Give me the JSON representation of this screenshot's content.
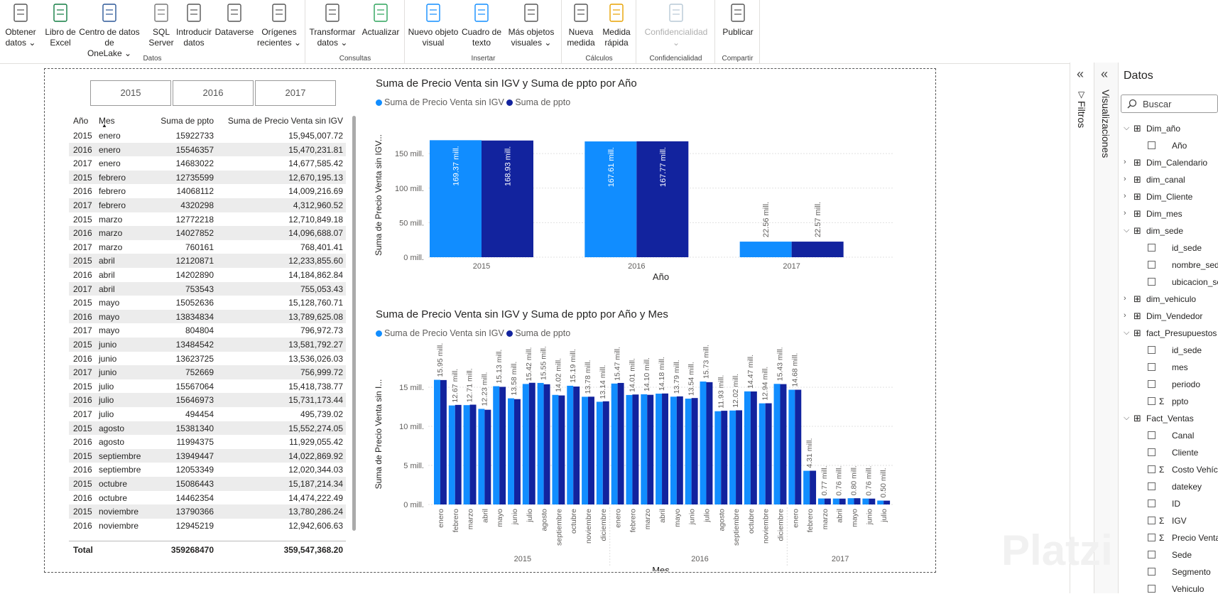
{
  "ribbon": {
    "groups": [
      {
        "name": "Datos",
        "buttons": [
          {
            "label1": "Obtener",
            "label2": "datos ⌄",
            "icon": "database-icon"
          },
          {
            "label1": "Libro de",
            "label2": "Excel",
            "icon": "excel-icon"
          },
          {
            "label1": "Centro de datos de",
            "label2": "OneLake ⌄",
            "icon": "onelake-icon"
          },
          {
            "label1": "SQL",
            "label2": "Server",
            "icon": "sql-server-icon"
          },
          {
            "label1": "Introducir",
            "label2": "datos",
            "icon": "table-grid-icon"
          },
          {
            "label1": "Dataverse",
            "label2": "",
            "icon": "dataverse-icon"
          },
          {
            "label1": "Orígenes",
            "label2": "recientes ⌄",
            "icon": "recent-sources-icon"
          }
        ]
      },
      {
        "name": "Consultas",
        "buttons": [
          {
            "label1": "Transformar",
            "label2": "datos ⌄",
            "icon": "transform-icon"
          },
          {
            "label1": "Actualizar",
            "label2": "",
            "icon": "refresh-icon"
          }
        ]
      },
      {
        "name": "Insertar",
        "buttons": [
          {
            "label1": "Nuevo objeto",
            "label2": "visual",
            "icon": "new-visual-icon"
          },
          {
            "label1": "Cuadro de",
            "label2": "texto",
            "icon": "text-box-icon"
          },
          {
            "label1": "Más objetos",
            "label2": "visuales ⌄",
            "icon": "more-visuals-icon"
          }
        ]
      },
      {
        "name": "Cálculos",
        "buttons": [
          {
            "label1": "Nueva",
            "label2": "medida",
            "icon": "calculator-icon"
          },
          {
            "label1": "Medida",
            "label2": "rápida",
            "icon": "quick-measure-icon"
          }
        ]
      },
      {
        "name": "Confidencialidad",
        "buttons": [
          {
            "label1": "Confidencialidad",
            "label2": "⌄",
            "icon": "sensitivity-icon"
          }
        ]
      },
      {
        "name": "Compartir",
        "buttons": [
          {
            "label1": "Publicar",
            "label2": "",
            "icon": "publish-icon"
          }
        ]
      }
    ]
  },
  "slicer": {
    "years": [
      "2015",
      "2016",
      "2017"
    ]
  },
  "table": {
    "headers": [
      "Año",
      "Mes",
      "Suma de ppto",
      "Suma de Precio Venta sin IGV"
    ],
    "rows": [
      [
        "2015",
        "enero",
        "15922733",
        "15,945,007.72"
      ],
      [
        "2016",
        "enero",
        "15546357",
        "15,470,231.81"
      ],
      [
        "2017",
        "enero",
        "14683022",
        "14,677,585.42"
      ],
      [
        "2015",
        "febrero",
        "12735599",
        "12,670,195.13"
      ],
      [
        "2016",
        "febrero",
        "14068112",
        "14,009,216.69"
      ],
      [
        "2017",
        "febrero",
        "4320298",
        "4,312,960.52"
      ],
      [
        "2015",
        "marzo",
        "12772218",
        "12,710,849.18"
      ],
      [
        "2016",
        "marzo",
        "14027852",
        "14,096,688.07"
      ],
      [
        "2017",
        "marzo",
        "760161",
        "768,401.41"
      ],
      [
        "2015",
        "abril",
        "12120871",
        "12,233,855.60"
      ],
      [
        "2016",
        "abril",
        "14202890",
        "14,184,862.84"
      ],
      [
        "2017",
        "abril",
        "753543",
        "755,053.43"
      ],
      [
        "2015",
        "mayo",
        "15052636",
        "15,128,760.71"
      ],
      [
        "2016",
        "mayo",
        "13834834",
        "13,789,625.08"
      ],
      [
        "2017",
        "mayo",
        "804804",
        "796,972.73"
      ],
      [
        "2015",
        "junio",
        "13484542",
        "13,581,792.27"
      ],
      [
        "2016",
        "junio",
        "13623725",
        "13,536,026.03"
      ],
      [
        "2017",
        "junio",
        "752669",
        "756,999.72"
      ],
      [
        "2015",
        "julio",
        "15567064",
        "15,418,738.77"
      ],
      [
        "2016",
        "julio",
        "15646973",
        "15,731,173.44"
      ],
      [
        "2017",
        "julio",
        "494454",
        "495,739.02"
      ],
      [
        "2015",
        "agosto",
        "15381340",
        "15,552,274.05"
      ],
      [
        "2016",
        "agosto",
        "11994375",
        "11,929,055.42"
      ],
      [
        "2015",
        "septiembre",
        "13949447",
        "14,022,869.92"
      ],
      [
        "2016",
        "septiembre",
        "12053349",
        "12,020,344.03"
      ],
      [
        "2015",
        "octubre",
        "15086443",
        "15,187,214.34"
      ],
      [
        "2016",
        "octubre",
        "14462354",
        "14,474,222.49"
      ],
      [
        "2015",
        "noviembre",
        "13790366",
        "13,780,286.24"
      ],
      [
        "2016",
        "noviembre",
        "12945219",
        "12,942,606.63"
      ]
    ],
    "total": {
      "label": "Total",
      "ppto": "359268470",
      "pv": "359,547,368.20"
    }
  },
  "chart_data": [
    {
      "type": "bar",
      "title": "Suma de Precio Venta sin IGV y Suma de ppto por Año",
      "xlabel": "Año",
      "ylabel": "Suma de Precio Venta sin IGV...",
      "categories": [
        "2015",
        "2016",
        "2017"
      ],
      "yticks": [
        "0 mill.",
        "50 mill.",
        "100 mill.",
        "150 mill."
      ],
      "ylim": [
        0,
        180
      ],
      "series": [
        {
          "name": "Suma de Precio Venta sin IGV",
          "color": "#118dff",
          "values": [
            169.37,
            167.61,
            22.56
          ],
          "labels": [
            "169.37 mill.",
            "167.61 mill.",
            "22.56 mill."
          ]
        },
        {
          "name": "Suma de ppto",
          "color": "#12239e",
          "values": [
            168.93,
            167.77,
            22.57
          ],
          "labels": [
            "168.93 mill.",
            "167.77 mill.",
            "22.57 mill."
          ]
        }
      ],
      "legend": "top-left"
    },
    {
      "type": "bar",
      "title": "Suma de Precio Venta sin IGV y Suma de ppto por Año y Mes",
      "xlabel": "Mes",
      "ylabel": "Suma de Precio Venta sin I...",
      "yticks": [
        "0 mill.",
        "5 mill.",
        "10 mill.",
        "15 mill."
      ],
      "ylim": [
        0,
        18
      ],
      "groups": [
        {
          "year": "2015",
          "months": [
            "enero",
            "febrero",
            "marzo",
            "abril",
            "mayo",
            "junio",
            "julio",
            "agosto",
            "septiembre",
            "octubre",
            "noviembre",
            "diciembre"
          ]
        },
        {
          "year": "2016",
          "months": [
            "enero",
            "febrero",
            "marzo",
            "abril",
            "mayo",
            "junio",
            "julio",
            "agosto",
            "septiembre",
            "octubre",
            "noviembre",
            "diciembre"
          ]
        },
        {
          "year": "2017",
          "months": [
            "enero",
            "febrero",
            "marzo",
            "abril",
            "mayo",
            "junio",
            "julio"
          ]
        }
      ],
      "series": [
        {
          "name": "Suma de Precio Venta sin IGV",
          "color": "#118dff",
          "values": [
            15.95,
            12.67,
            12.71,
            12.23,
            15.13,
            13.58,
            15.42,
            15.55,
            14.02,
            15.19,
            13.78,
            13.14,
            15.47,
            14.01,
            14.1,
            14.18,
            13.79,
            13.54,
            15.73,
            11.93,
            12.02,
            14.47,
            12.94,
            15.43,
            14.68,
            4.31,
            0.77,
            0.76,
            0.8,
            0.76,
            0.5
          ],
          "labels": [
            "15.95 mill.",
            "12.67 mill.",
            "12.71 mill.",
            "12.23 mill.",
            "15.13 mill.",
            "13.58 mill.",
            "15.42 mill.",
            "15.55 mill.",
            "14.02 mill.",
            "15.19 mill.",
            "13.78 mill.",
            "13.14 mill.",
            "15.47 mill.",
            "14.01 mill.",
            "14.10 mill.",
            "14.18 mill.",
            "13.79 mill.",
            "13.54 mill.",
            "15.73 mill.",
            "11.93 mill.",
            "12.02 mill.",
            "14.47 mill.",
            "12.94 mill.",
            "15.43 mill.",
            "14.68 mill.",
            "4.31 mill.",
            "0.77 mill.",
            "0.76 mill.",
            "0.80 mill.",
            "0.76 mill.",
            "0.50 mill."
          ]
        },
        {
          "name": "Suma de ppto",
          "color": "#12239e",
          "values": [
            15.92,
            12.74,
            12.77,
            12.12,
            15.05,
            13.48,
            15.57,
            15.38,
            13.95,
            15.09,
            13.79,
            13.2,
            15.55,
            14.07,
            14.03,
            14.2,
            13.83,
            13.62,
            15.65,
            11.99,
            12.05,
            14.46,
            12.95,
            15.4,
            14.68,
            4.32,
            0.76,
            0.75,
            0.8,
            0.75,
            0.49
          ]
        }
      ],
      "legend": "top-left"
    }
  ],
  "panes": {
    "filtros": "Filtros",
    "visualizaciones": "Visualizaciones",
    "datos_title": "Datos",
    "search_placeholder": "Buscar",
    "fields": [
      {
        "label": "Dim_año",
        "kind": "table",
        "expanded": true
      },
      {
        "label": "Año",
        "kind": "field"
      },
      {
        "label": "Dim_Calendario",
        "kind": "table",
        "expanded": false
      },
      {
        "label": "dim_canal",
        "kind": "table",
        "expanded": false
      },
      {
        "label": "Dim_Cliente",
        "kind": "table",
        "expanded": false
      },
      {
        "label": "Dim_mes",
        "kind": "table",
        "expanded": false
      },
      {
        "label": "dim_sede",
        "kind": "table",
        "expanded": true
      },
      {
        "label": "id_sede",
        "kind": "field"
      },
      {
        "label": "nombre_sede",
        "kind": "field"
      },
      {
        "label": "ubicacion_se",
        "kind": "field"
      },
      {
        "label": "dim_vehiculo",
        "kind": "table",
        "expanded": false
      },
      {
        "label": "Dim_Vendedor",
        "kind": "table",
        "expanded": false
      },
      {
        "label": "fact_Presupuestos",
        "kind": "table",
        "expanded": true
      },
      {
        "label": "id_sede",
        "kind": "field"
      },
      {
        "label": "mes",
        "kind": "field"
      },
      {
        "label": "periodo",
        "kind": "field"
      },
      {
        "label": "ppto",
        "kind": "sum"
      },
      {
        "label": "Fact_Ventas",
        "kind": "table",
        "expanded": true
      },
      {
        "label": "Canal",
        "kind": "field"
      },
      {
        "label": "Cliente",
        "kind": "field"
      },
      {
        "label": "Costo Vehículo",
        "kind": "sum"
      },
      {
        "label": "datekey",
        "kind": "field"
      },
      {
        "label": "ID",
        "kind": "field"
      },
      {
        "label": "IGV",
        "kind": "sum"
      },
      {
        "label": "Precio Venta",
        "kind": "sum"
      },
      {
        "label": "Sede",
        "kind": "field"
      },
      {
        "label": "Segmento",
        "kind": "field"
      },
      {
        "label": "Vehiculo",
        "kind": "field"
      }
    ]
  },
  "watermark": "Platzi"
}
